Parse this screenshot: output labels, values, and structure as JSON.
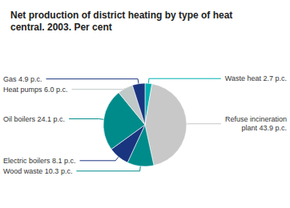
{
  "chart_data": {
    "type": "pie",
    "title": "Net production of district heating by type of heat\ncentral. 2003. Per cent",
    "categories": [
      "Waste heat 2.7 p.c.",
      "Refuse incineration\nplant 43.9 p.c.",
      "Wood waste 10.3 p.c.",
      "Electric boilers 8.1 p.c.",
      "Oil boilers 24.1 p.c.",
      "Heat pumps 6.0 p.c.",
      "Gas 4.9 p.c."
    ],
    "values": [
      2.7,
      43.9,
      10.3,
      8.1,
      24.1,
      6.0,
      4.9
    ],
    "colors": [
      "#00b0b0",
      "#c8c8c8",
      "#008b8b",
      "#1a3580",
      "#008b8b",
      "#c0c8c8",
      "#1a3580"
    ]
  }
}
